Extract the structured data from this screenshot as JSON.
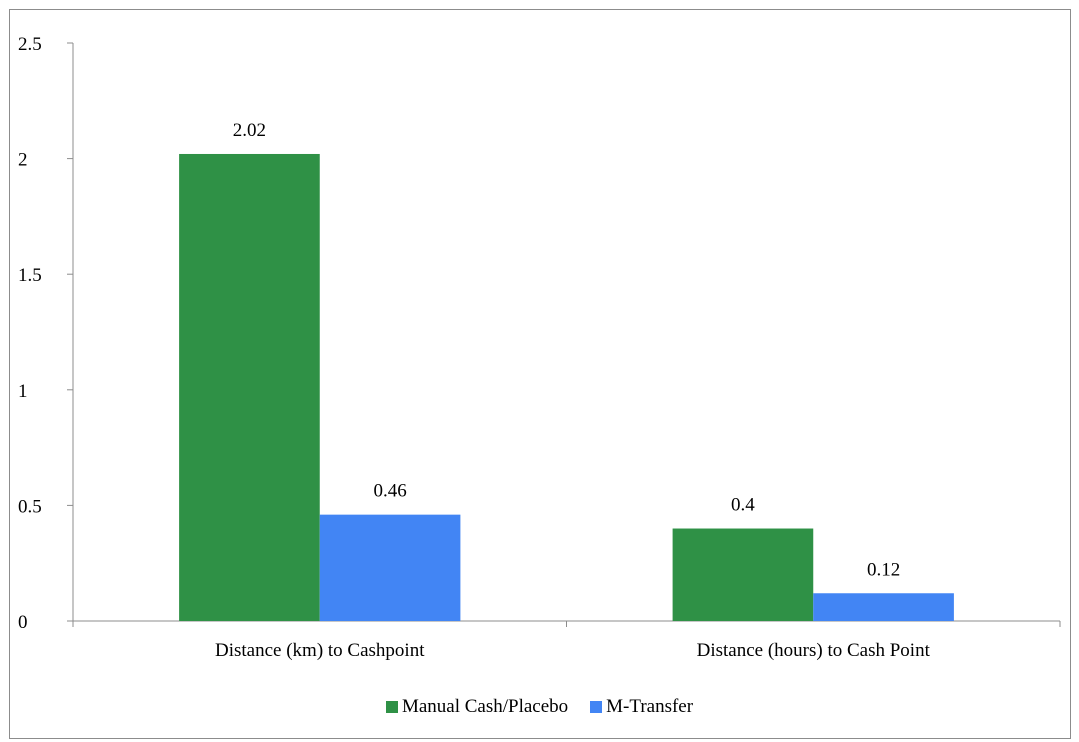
{
  "chart_data": {
    "type": "bar",
    "categories": [
      "Distance (km) to Cashpoint",
      "Distance (hours) to Cash Point"
    ],
    "series": [
      {
        "name": "Manual Cash/Placebo",
        "values": [
          2.02,
          0.4
        ],
        "color": "#2f9146"
      },
      {
        "name": "M-Transfer",
        "values": [
          0.46,
          0.12
        ],
        "color": "#4285f4"
      }
    ],
    "data_labels": [
      [
        "2.02",
        "0.4"
      ],
      [
        "0.46",
        "0.12"
      ]
    ],
    "ylim": [
      0,
      2.5
    ],
    "yticks": [
      "0",
      "0.5",
      "1",
      "1.5",
      "2",
      "2.5"
    ],
    "ytick_values": [
      0,
      0.5,
      1,
      1.5,
      2,
      2.5
    ],
    "title": "",
    "xlabel": "",
    "ylabel": "",
    "grid": false,
    "legend_position": "bottom"
  }
}
